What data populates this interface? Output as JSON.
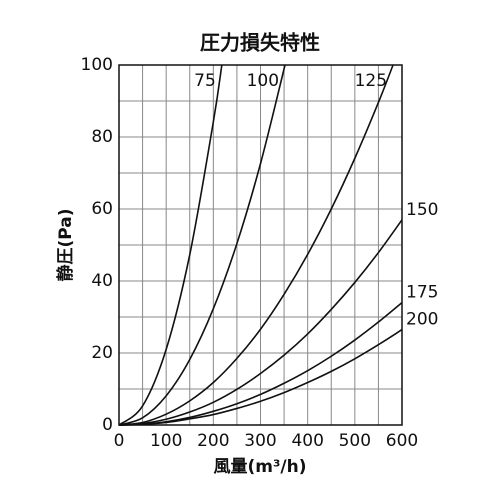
{
  "chart_data": {
    "type": "line",
    "title": "圧力損失特性",
    "x_label": "風量(m³/h)",
    "y_label": "静圧(Pa)",
    "xlim": [
      0,
      600
    ],
    "ylim": [
      0,
      100
    ],
    "xticks": [
      0,
      100,
      200,
      300,
      400,
      500,
      600
    ],
    "yticks": [
      0,
      20,
      40,
      60,
      80,
      100
    ],
    "grid": true,
    "color": "#111111",
    "series": [
      {
        "name": "75",
        "x": [
          0,
          50,
          100,
          150,
          200,
          218
        ],
        "values": [
          0,
          5.3,
          21,
          47.3,
          84.2,
          100
        ]
      },
      {
        "name": "100",
        "x": [
          0,
          50,
          100,
          150,
          200,
          250,
          300,
          352
        ],
        "values": [
          0,
          2.0,
          8.1,
          18.2,
          32.3,
          50.4,
          72.6,
          100
        ]
      },
      {
        "name": "125",
        "x": [
          0,
          50,
          100,
          150,
          200,
          250,
          300,
          350,
          400,
          450,
          500,
          550,
          581
        ],
        "values": [
          0,
          0.7,
          3.0,
          6.7,
          11.8,
          18.5,
          26.6,
          36.3,
          47.4,
          60.0,
          74.1,
          89.6,
          100
        ]
      },
      {
        "name": "150",
        "x": [
          0,
          50,
          100,
          150,
          200,
          250,
          300,
          350,
          400,
          450,
          500,
          550,
          600
        ],
        "values": [
          0,
          0.4,
          1.6,
          3.6,
          6.3,
          9.9,
          14.3,
          19.4,
          25.3,
          32.1,
          39.6,
          47.9,
          57
        ]
      },
      {
        "name": "175",
        "x": [
          0,
          50,
          100,
          150,
          200,
          250,
          300,
          350,
          400,
          450,
          500,
          550,
          600
        ],
        "values": [
          0,
          0.2,
          0.9,
          2.1,
          3.8,
          5.9,
          8.5,
          11.6,
          15.1,
          19.1,
          23.6,
          28.6,
          34
        ]
      },
      {
        "name": "200",
        "x": [
          0,
          50,
          100,
          150,
          200,
          250,
          300,
          350,
          400,
          450,
          500,
          550,
          600
        ],
        "values": [
          0,
          0.2,
          0.7,
          1.7,
          2.9,
          4.6,
          6.6,
          9.0,
          11.8,
          14.9,
          18.4,
          22.3,
          26.5
        ]
      }
    ]
  }
}
